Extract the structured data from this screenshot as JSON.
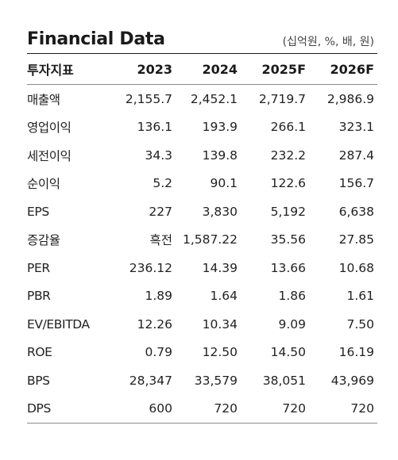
{
  "title": "Financial Data",
  "unit_note": "(십억원, %, 배, 원)",
  "header": [
    "투자지표",
    "2023",
    "2024",
    "2025F",
    "2026F"
  ],
  "rows": [
    [
      "매출액",
      "2,155.7",
      "2,452.1",
      "2,719.7",
      "2,986.9"
    ],
    [
      "영업이익",
      "136.1",
      "193.9",
      "266.1",
      "323.1"
    ],
    [
      "세전이익",
      "34.3",
      "139.8",
      "232.2",
      "287.4"
    ],
    [
      "순이익",
      "5.2",
      "90.1",
      "122.6",
      "156.7"
    ],
    [
      "EPS",
      "227",
      "3,830",
      "5,192",
      "6,638"
    ],
    [
      "증감율",
      "흑전",
      "1,587.22",
      "35.56",
      "27.85"
    ],
    [
      "PER",
      "236.12",
      "14.39",
      "13.66",
      "10.68"
    ],
    [
      "PBR",
      "1.89",
      "1.64",
      "1.86",
      "1.61"
    ],
    [
      "EV/EBITDA",
      "12.26",
      "10.34",
      "9.09",
      "7.50"
    ],
    [
      "ROE",
      "0.79",
      "12.50",
      "14.50",
      "16.19"
    ],
    [
      "BPS",
      "28,347",
      "33,579",
      "38,051",
      "43,969"
    ],
    [
      "DPS",
      "600",
      "720",
      "720",
      "720"
    ]
  ]
}
